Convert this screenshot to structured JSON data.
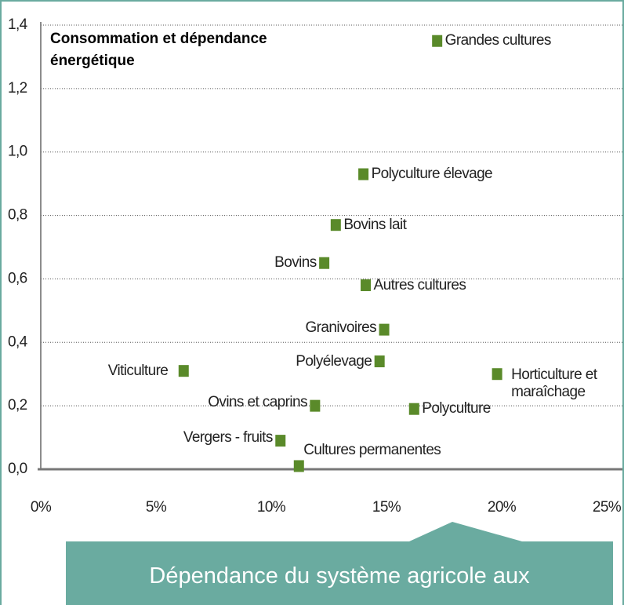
{
  "chart_data": {
    "type": "scatter",
    "title": "Consommation et dépendance énergétique",
    "xlabel": "Dépendance du système agricole aux",
    "labels": [
      "Grandes cultures",
      "Polyculture élevage",
      "Bovins lait",
      "Bovins",
      "Autres cultures",
      "Granivoires",
      "Polyélevage",
      "Viticulture",
      "Horticulture et maraîchage",
      "Ovins et caprins",
      "Polyculture",
      "Vergers - fruits",
      "Cultures permanentes"
    ],
    "x": [
      17.2,
      14.0,
      12.8,
      12.3,
      14.1,
      14.9,
      14.7,
      6.2,
      19.8,
      11.9,
      16.2,
      10.4,
      11.2
    ],
    "values": [
      1.35,
      0.93,
      0.77,
      0.65,
      0.58,
      0.44,
      0.34,
      0.31,
      0.3,
      0.2,
      0.19,
      0.09,
      0.01
    ],
    "color": "#5a8a2a",
    "xlim": [
      0,
      25
    ],
    "xticks": [
      {
        "value": 0,
        "label": "0%"
      },
      {
        "value": 5,
        "label": "5%"
      },
      {
        "value": 10,
        "label": "10%"
      },
      {
        "value": 15,
        "label": "15%"
      },
      {
        "value": 20,
        "label": "20%"
      },
      {
        "value": 25,
        "label": "25%"
      }
    ],
    "ylim": [
      0,
      1.4
    ],
    "yticks": [
      {
        "value": 0,
        "label": "0,0"
      },
      {
        "value": 0.2,
        "label": "0,2"
      },
      {
        "value": 0.4,
        "label": "0,4"
      },
      {
        "value": 0.6,
        "label": "0,6"
      },
      {
        "value": 0.8,
        "label": "0,8"
      },
      {
        "value": 1.0,
        "label": "1,0"
      },
      {
        "value": 1.2,
        "label": "1,2"
      },
      {
        "value": 1.4,
        "label": "1,4"
      }
    ],
    "grid": true
  }
}
